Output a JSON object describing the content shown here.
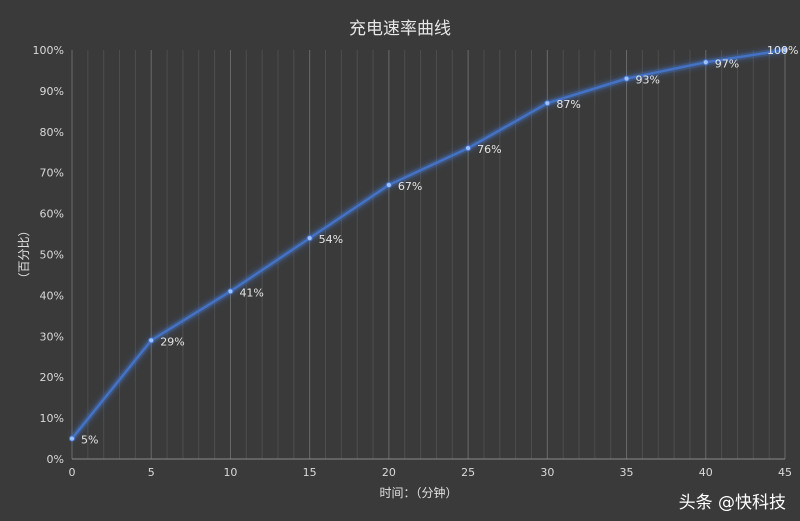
{
  "chart_data": {
    "type": "line",
    "title": "充电速率曲线",
    "xlabel": "时间：（分钟）",
    "ylabel": "（百分比）",
    "x": [
      0,
      5,
      10,
      15,
      20,
      25,
      30,
      35,
      40,
      45
    ],
    "y": [
      5,
      29,
      41,
      54,
      67,
      76,
      87,
      93,
      97,
      100
    ],
    "data_labels": [
      "5%",
      "29%",
      "41%",
      "54%",
      "67%",
      "76%",
      "87%",
      "93%",
      "97%",
      "100%"
    ],
    "x_ticks": [
      "0",
      "5",
      "10",
      "15",
      "20",
      "25",
      "30",
      "35",
      "40",
      "45"
    ],
    "y_ticks": [
      "0%",
      "10%",
      "20%",
      "30%",
      "40%",
      "50%",
      "60%",
      "70%",
      "80%",
      "90%",
      "100%"
    ],
    "xlim": [
      0,
      45
    ],
    "ylim": [
      0,
      100
    ],
    "grid": "vertical major and minor",
    "legend": "none",
    "line_color": "#4472c4",
    "background_color": "#3a3a3a"
  },
  "watermark": "头条 @快科技"
}
